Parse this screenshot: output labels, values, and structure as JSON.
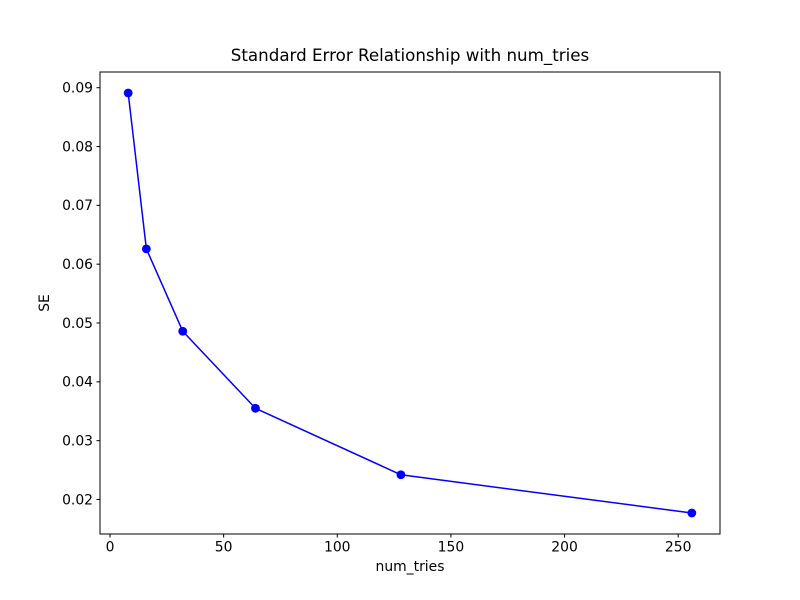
{
  "chart_data": {
    "type": "line",
    "title": "Standard Error Relationship with num_tries",
    "xlabel": "num_tries",
    "ylabel": "SE",
    "x": [
      8,
      16,
      32,
      64,
      128,
      256
    ],
    "y": [
      0.0891,
      0.0626,
      0.0486,
      0.0355,
      0.0242,
      0.0177
    ],
    "xticks": [
      0,
      50,
      100,
      150,
      200,
      250
    ],
    "yticks": [
      0.02,
      0.03,
      0.04,
      0.05,
      0.06,
      0.07,
      0.08,
      0.09
    ],
    "xlim": [
      -4.4,
      268.4
    ],
    "ylim": [
      0.01413,
      0.09267
    ],
    "line_color": "#0000ff",
    "marker": "circle",
    "axis_color": "#000000",
    "background_color": "#ffffff",
    "grid": false,
    "legend": "none"
  }
}
